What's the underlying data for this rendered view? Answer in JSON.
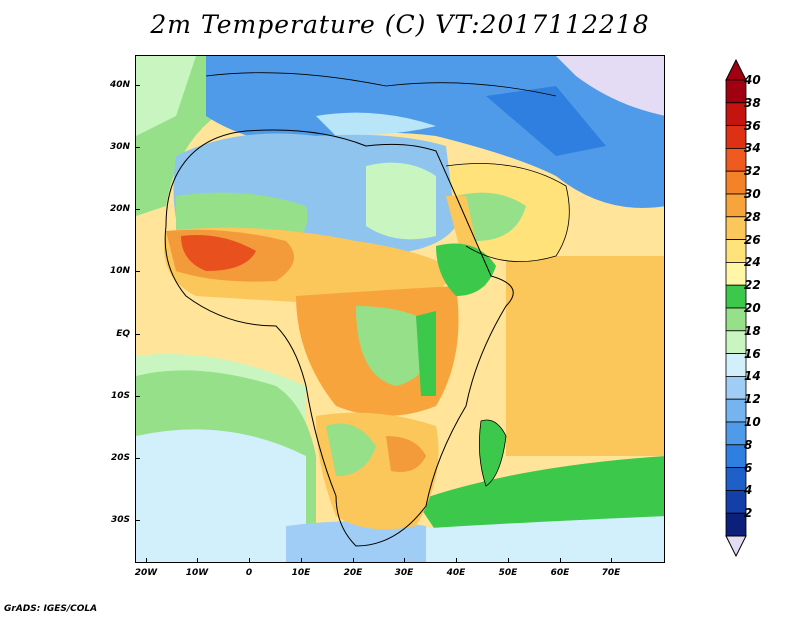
{
  "title": "2m Temperature (C) VT:2017112218",
  "footer": "GrADS: IGES/COLA",
  "axes": {
    "lat_labels": [
      "40N",
      "30N",
      "20N",
      "10N",
      "EQ",
      "10S",
      "20S",
      "30S"
    ],
    "lon_labels": [
      "20W",
      "10W",
      "0",
      "10E",
      "20E",
      "30E",
      "40E",
      "50E",
      "60E",
      "70E"
    ],
    "lon_range": [
      -22,
      80
    ],
    "lat_range": [
      -36,
      45
    ]
  },
  "colorbar": {
    "levels": [
      "2",
      "4",
      "6",
      "8",
      "10",
      "12",
      "14",
      "16",
      "18",
      "20",
      "22",
      "24",
      "26",
      "28",
      "30",
      "32",
      "34",
      "36",
      "38",
      "40"
    ],
    "colors": [
      "#0c1f7a",
      "#143fa8",
      "#1f5fc8",
      "#2f7fe0",
      "#4f9bea",
      "#76b4f0",
      "#a0cdf5",
      "#d2f0fb",
      "#c8f5c0",
      "#96e08a",
      "#3cc84a",
      "#fff6a8",
      "#ffe27a",
      "#fbc65a",
      "#f8a43c",
      "#f38228",
      "#ee5a20",
      "#de3014",
      "#c41410",
      "#a00010"
    ],
    "under_color": "#e4dcf4",
    "over_color": "#a00010"
  },
  "field": {
    "ocean_color": "#ffe49a",
    "sahara_color": "#8fc4ee",
    "med_color": "#b8e6f8",
    "sahel_color": "#f39a3a",
    "hot_core_color": "#e8501e",
    "southern_ocean_color": "#3cc84a"
  }
}
